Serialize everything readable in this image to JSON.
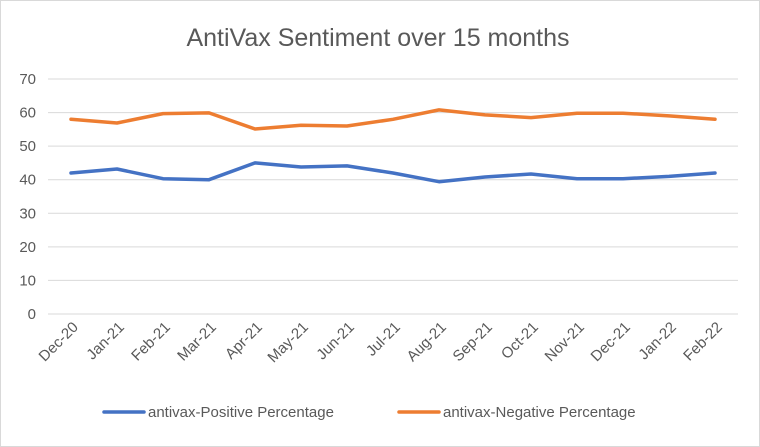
{
  "chart_data": {
    "type": "line",
    "title": "AntiVax Sentiment over 15 months",
    "xlabel": "",
    "ylabel": "",
    "categories": [
      "Dec-20",
      "Jan-21",
      "Feb-21",
      "Mar-21",
      "Apr-21",
      "May-21",
      "Jun-21",
      "Jul-21",
      "Aug-21",
      "Sep-21",
      "Oct-21",
      "Nov-21",
      "Dec-21",
      "Jan-22",
      "Feb-22"
    ],
    "ylim": [
      0,
      70
    ],
    "yticks": [
      0,
      10,
      20,
      30,
      40,
      50,
      60,
      70
    ],
    "grid": true,
    "legend_position": "bottom",
    "series": [
      {
        "name": "antivax-Positive Percentage",
        "color": "#4472C4",
        "values": [
          42.0,
          43.2,
          40.3,
          40.0,
          45.0,
          43.8,
          44.1,
          42.0,
          39.4,
          40.8,
          41.7,
          40.3,
          40.3,
          41.0,
          42.0
        ]
      },
      {
        "name": "antivax-Negative Percentage",
        "color": "#ED7D31",
        "values": [
          58.0,
          56.9,
          59.7,
          59.9,
          55.1,
          56.2,
          56.0,
          58.0,
          60.8,
          59.3,
          58.5,
          59.8,
          59.8,
          59.0,
          58.0
        ]
      }
    ]
  }
}
